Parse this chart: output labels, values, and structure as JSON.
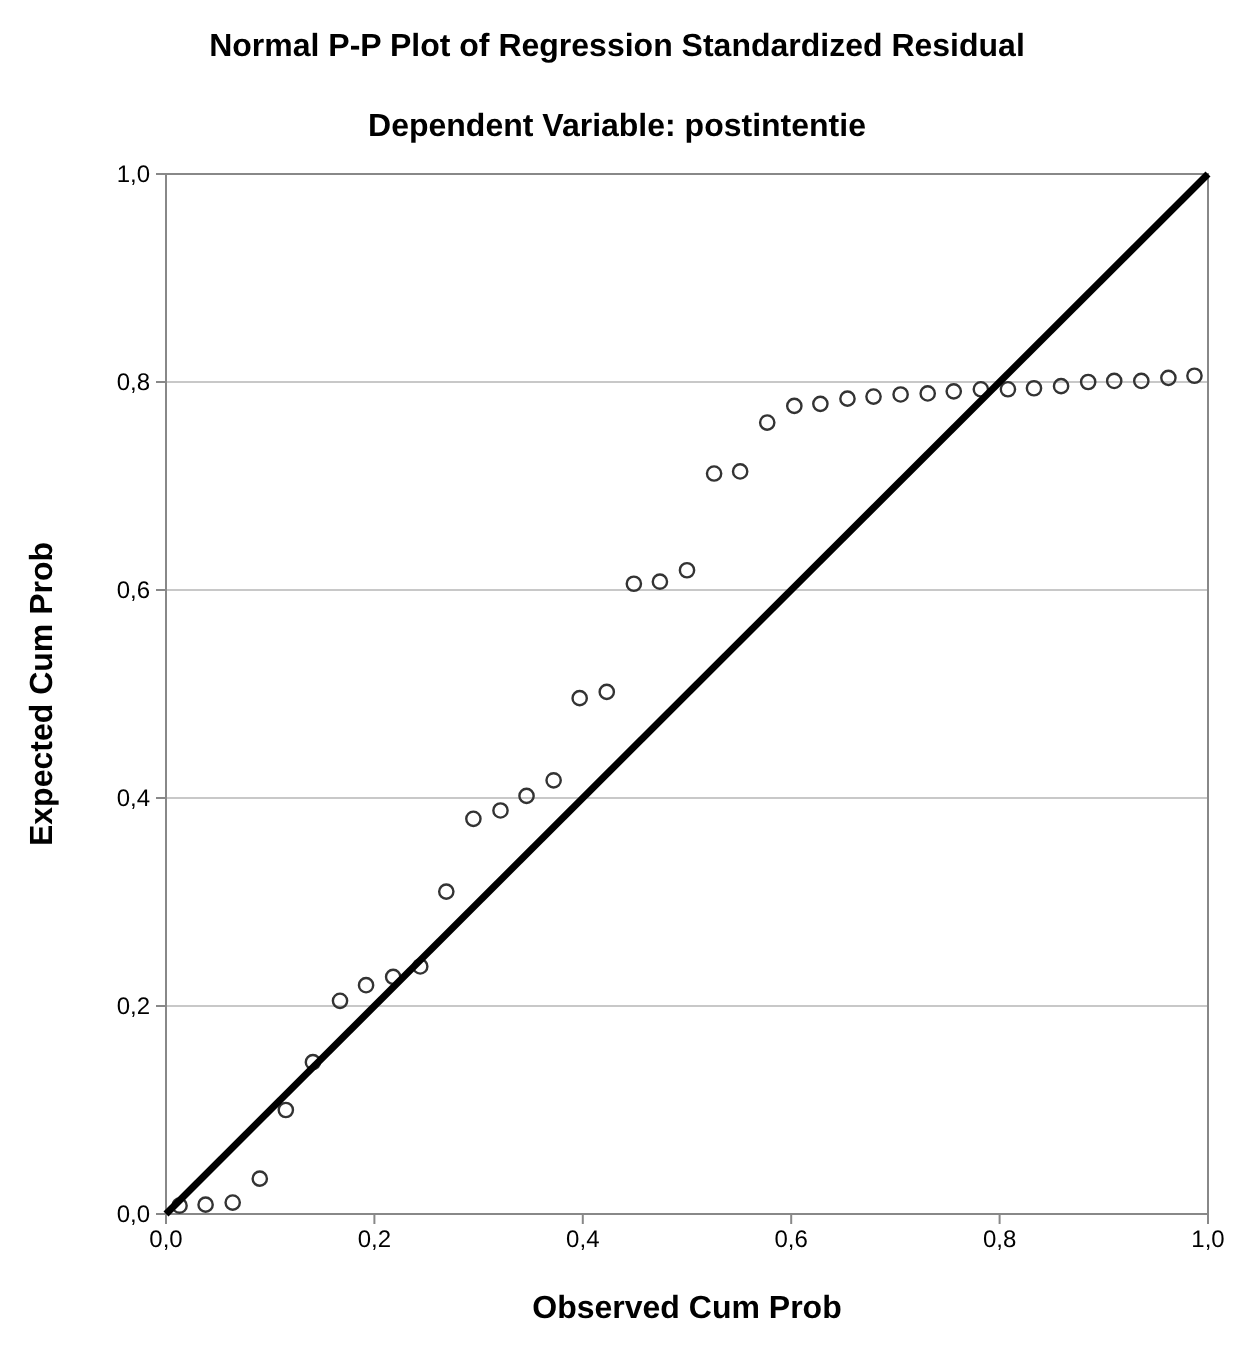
{
  "chart_data": {
    "type": "scatter",
    "title": "Normal P-P Plot of Regression Standardized Residual",
    "subtitle": "Dependent Variable: postintentie",
    "xlabel": "Observed Cum Prob",
    "ylabel": "Expected Cum Prob",
    "xlim": [
      0,
      1
    ],
    "ylim": [
      0,
      1
    ],
    "xticks": [
      {
        "value": 0,
        "label": "0,0"
      },
      {
        "value": 0.2,
        "label": "0,2"
      },
      {
        "value": 0.4,
        "label": "0,4"
      },
      {
        "value": 0.6,
        "label": "0,6"
      },
      {
        "value": 0.8,
        "label": "0,8"
      },
      {
        "value": 1,
        "label": "1,0"
      }
    ],
    "yticks": [
      {
        "value": 0,
        "label": "0,0"
      },
      {
        "value": 0.2,
        "label": "0,2"
      },
      {
        "value": 0.4,
        "label": "0,4"
      },
      {
        "value": 0.6,
        "label": "0,6"
      },
      {
        "value": 0.8,
        "label": "0,8"
      },
      {
        "value": 1,
        "label": "1,0"
      }
    ],
    "grid": "y",
    "marker": "circle",
    "series": [
      {
        "color": "#333333",
        "x": [
          0.013,
          0.038,
          0.064,
          0.09,
          0.115,
          0.141,
          0.167,
          0.192,
          0.218,
          0.244,
          0.269,
          0.295,
          0.321,
          0.346,
          0.372,
          0.397,
          0.423,
          0.449,
          0.474,
          0.5,
          0.526,
          0.551,
          0.577,
          0.603,
          0.628,
          0.654,
          0.679,
          0.705,
          0.731,
          0.756,
          0.782,
          0.808,
          0.833,
          0.859,
          0.885,
          0.91,
          0.936,
          0.962,
          0.987
        ],
        "values": [
          0.008,
          0.009,
          0.011,
          0.034,
          0.1,
          0.146,
          0.205,
          0.22,
          0.228,
          0.238,
          0.31,
          0.38,
          0.388,
          0.402,
          0.417,
          0.496,
          0.502,
          0.606,
          0.608,
          0.619,
          0.712,
          0.714,
          0.761,
          0.777,
          0.779,
          0.784,
          0.786,
          0.788,
          0.789,
          0.791,
          0.793,
          0.793,
          0.794,
          0.796,
          0.8,
          0.801,
          0.801,
          0.804,
          0.806
        ]
      },
      {
        "type": "line",
        "color": "#000000",
        "x": [
          0,
          1
        ],
        "values": [
          0,
          1
        ],
        "marker": "none"
      }
    ]
  }
}
